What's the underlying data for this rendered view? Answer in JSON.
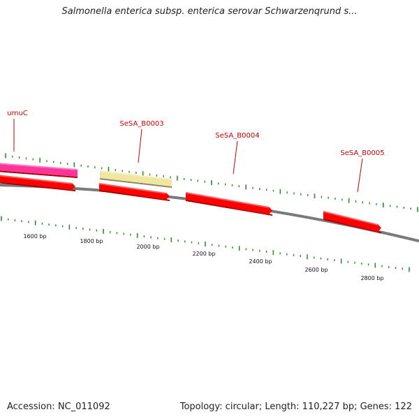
{
  "title": "Salmonella enterica subsp. enterica serovar Schwarzenqrund s...",
  "footer": {
    "accession": "Accession: NC_011092",
    "stats": "Topology: circular; Length: 110,227 bp; Genes: 122"
  },
  "colors": {
    "backbone": "#808080",
    "tick": "#2e8b2e",
    "label": "#cc0000",
    "red_gene": "#ff0000",
    "pink_gene": "#ff3399",
    "yellow_gene": "#f0e6a0"
  },
  "genes": [
    {
      "label": "umuC",
      "color": "pink"
    },
    {
      "label": "",
      "color": "red"
    },
    {
      "label": "SeSA_B0003",
      "color": "yellow"
    },
    {
      "label": "",
      "color": "red"
    },
    {
      "label": "SeSA_B0004",
      "color": "red"
    },
    {
      "label": "SeSA_B0005",
      "color": "red"
    }
  ],
  "scale_labels": [
    "1600 bp",
    "1800 bp",
    "2000 bp",
    "2200 bp",
    "2400 bp",
    "2600 bp",
    "2800 bp"
  ]
}
